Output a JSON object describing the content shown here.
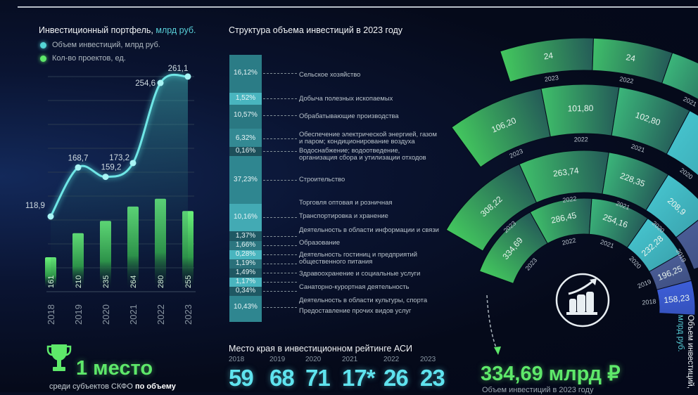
{
  "portfolio": {
    "title_main": "Инвестиционный портфель,",
    "title_unit": "млрд руб.",
    "legend": [
      {
        "label": "Объем инвестиций, млрд руб.",
        "color": "#55d6d6"
      },
      {
        "label": "Кол-во проектов, ед.",
        "color": "#5ee86a"
      }
    ]
  },
  "structure": {
    "title": "Структура объема инвестиций в 2023 году"
  },
  "rating": {
    "title": "Место края в инвестиционном рейтинге АСИ",
    "items": [
      {
        "year": "2018",
        "place": "59"
      },
      {
        "year": "2019",
        "place": "68"
      },
      {
        "year": "2020",
        "place": "71"
      },
      {
        "year": "2021",
        "place": "17*"
      },
      {
        "year": "2022",
        "place": "26"
      },
      {
        "year": "2023",
        "place": "23"
      }
    ]
  },
  "award": {
    "big": "1 место",
    "caption": "среди субъектов СКФО",
    "caption_bold": "по объему"
  },
  "total": {
    "value": "334,69 млрд ₽",
    "caption": "Объем инвестиций в 2023 году"
  },
  "radial_axis_label": {
    "line1": "Объем инвестиций,",
    "line2": "млрд руб."
  },
  "chart_data": [
    {
      "type": "line+bar",
      "categories": [
        "2018",
        "2019",
        "2020",
        "2021",
        "2022",
        "2023"
      ],
      "series": [
        {
          "name": "Объем инвестиций, млрд руб.",
          "type": "line",
          "values": [
            118.9,
            168.7,
            159.2,
            173.2,
            254.6,
            261.1
          ],
          "labels": [
            "118,9",
            "168,7",
            "159,2",
            "173,2",
            "254,6",
            "261,1"
          ],
          "color": "#55d6d6"
        },
        {
          "name": "Кол-во проектов, ед.",
          "type": "bar",
          "values": [
            161,
            210,
            235,
            264,
            280,
            255
          ],
          "color": "#5ee86a"
        }
      ],
      "grid": true
    },
    {
      "type": "stacked-bar",
      "segments": [
        {
          "pct": "16,12%",
          "label": "Сельское хозяйство",
          "color": "#2b7c86"
        },
        {
          "pct": "1,52%",
          "label": "Добыча полезных ископаемых",
          "color": "#49b5bf"
        },
        {
          "pct": "10,57%",
          "label": "Обрабатывающие производства",
          "color": "#2a7882"
        },
        {
          "pct": "6,32%",
          "label": "Обеспечение электрической энергией, газом и паром; кондиционирование воздуха",
          "color": "#338993"
        },
        {
          "pct": "0,16%",
          "label": "Водоснабжение; водоотведение, организация сбора и утилизации отходов",
          "color": "#1d4f5a"
        },
        {
          "pct": "37,23%",
          "label": "Строительство",
          "color": "#2f8690"
        },
        {
          "pct": "",
          "label": "Торговля оптовая и розничная",
          "color": "#2f8690"
        },
        {
          "pct": "10,16%",
          "label": "Транспортировка и хранение",
          "color": "#43aab4"
        },
        {
          "pct": "1,37%",
          "label": "Деятельность в области информации и связи",
          "color": "#1f5863"
        },
        {
          "pct": "1,66%",
          "label": "Образование",
          "color": "#2c7680"
        },
        {
          "pct": "0,28%",
          "label": "Деятельность гостиниц и предприятий общественного питания",
          "color": "#49b5bf"
        },
        {
          "pct": "1,19%",
          "label": "",
          "color": "#2a707a"
        },
        {
          "pct": "1,49%",
          "label": "Здравоохранение и социальные услуги",
          "color": "#1f5863"
        },
        {
          "pct": "1,17%",
          "label": "Санаторно-курортная деятельность",
          "color": "#49b5bf"
        },
        {
          "pct": "0,34%",
          "label": "Деятельность в области культуры, спорта",
          "color": "#1f5863"
        },
        {
          "pct": "10,43%",
          "label": "Предоставление прочих видов услуг",
          "color": "#2f8690"
        }
      ]
    },
    {
      "type": "radial-bar",
      "rings": [
        {
          "name": "Объем инвестиций, млрд руб.",
          "segments": [
            {
              "year": "2023",
              "value": "334,69"
            },
            {
              "year": "2022",
              "value": "286,45"
            },
            {
              "year": "2021",
              "value": "254,16"
            },
            {
              "year": "2020",
              "value": "232,28"
            },
            {
              "year": "2019",
              "value": "196,25"
            },
            {
              "year": "2018",
              "value": "158,23"
            }
          ]
        },
        {
          "segments": [
            {
              "year": "2023",
              "value": "308,22"
            },
            {
              "year": "2022",
              "value": "263,74"
            },
            {
              "year": "2021",
              "value": "228,35"
            },
            {
              "year": "2020",
              "value": "208,9"
            },
            {
              "year": "2019",
              "value": ""
            }
          ]
        },
        {
          "segments": [
            {
              "year": "2023",
              "value": "106,20"
            },
            {
              "year": "2022",
              "value": "101,80"
            },
            {
              "year": "2021",
              "value": "102,80"
            },
            {
              "year": "2020",
              "value": ""
            }
          ]
        },
        {
          "segments": [
            {
              "year": "2023",
              "value": "24"
            },
            {
              "year": "2022",
              "value": "24"
            },
            {
              "year": "2021",
              "value": ""
            }
          ]
        }
      ]
    }
  ]
}
